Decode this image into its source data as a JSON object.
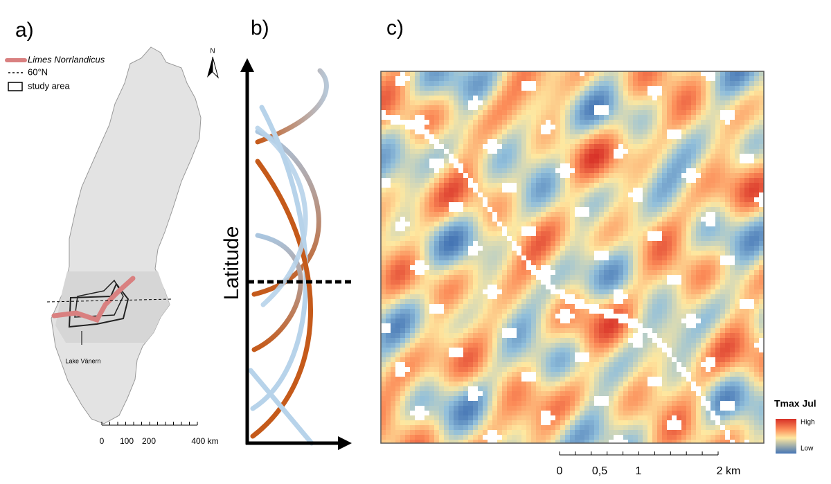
{
  "panels": {
    "a": {
      "label": "a)",
      "legend": {
        "limes": "Limes Norrlandicus",
        "parallel": "60°N",
        "study_area": "study area"
      },
      "north": "N",
      "lake": "Lake Vänern",
      "scale": [
        "0",
        "100",
        "200",
        "400 km"
      ]
    },
    "b": {
      "label": "b)",
      "y_axis": "Latitude"
    },
    "c": {
      "label": "c)",
      "legend": {
        "title": "Tmax Jul",
        "high": "High",
        "low": "Low"
      },
      "scale": [
        "0",
        "0,5",
        "1",
        "2 km"
      ]
    }
  }
}
